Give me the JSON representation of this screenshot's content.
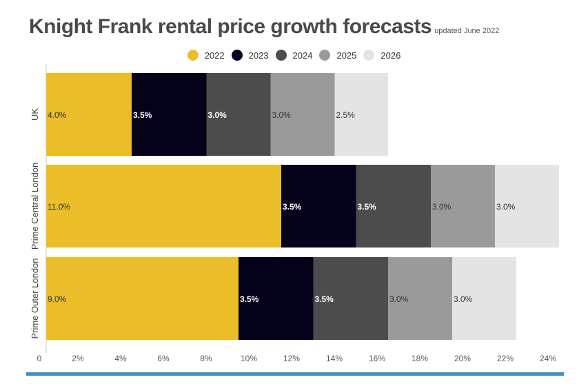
{
  "title": "Knight Frank rental price growth forecasts",
  "subtitle": "updated June 2022",
  "legend": [
    {
      "label": "2022",
      "color": "#ebbd28"
    },
    {
      "label": "2023",
      "color": "#05031c"
    },
    {
      "label": "2024",
      "color": "#4c4c4c"
    },
    {
      "label": "2025",
      "color": "#9a9a9a"
    },
    {
      "label": "2026",
      "color": "#e4e4e4"
    }
  ],
  "chart_data": {
    "type": "bar",
    "orientation": "horizontal",
    "stacked": true,
    "title": "Knight Frank rental price growth forecasts",
    "subtitle": "updated June 2022",
    "categories": [
      "UK",
      "Prime Central London",
      "Prime Outer London"
    ],
    "series": [
      {
        "name": "2022",
        "color": "#ebbd28",
        "label_color": "#333333",
        "values": [
          4.0,
          11.0,
          9.0
        ]
      },
      {
        "name": "2023",
        "color": "#05031c",
        "label_color": "#ffffff",
        "values": [
          3.5,
          3.5,
          3.5
        ]
      },
      {
        "name": "2024",
        "color": "#4c4c4c",
        "label_color": "#ffffff",
        "values": [
          3.0,
          3.5,
          3.5
        ]
      },
      {
        "name": "2025",
        "color": "#9a9a9a",
        "label_color": "#333333",
        "values": [
          3.0,
          3.0,
          3.0
        ]
      },
      {
        "name": "2026",
        "color": "#e4e4e4",
        "label_color": "#333333",
        "values": [
          2.5,
          3.0,
          3.0
        ]
      }
    ],
    "data_labels": [
      [
        "4.0%",
        "3.5%",
        "3.0%",
        "3.0%",
        "2.5%"
      ],
      [
        "11.0%",
        "3.5%",
        "3.5%",
        "3.0%",
        "3.0%"
      ],
      [
        "9.0%",
        "3.5%",
        "3.5%",
        "3.0%",
        "3.0%"
      ]
    ],
    "xlim": [
      0,
      24
    ],
    "xticks": [
      0,
      2,
      4,
      6,
      8,
      10,
      12,
      14,
      16,
      18,
      20,
      22,
      24
    ],
    "xtick_labels": [
      "0",
      "2%",
      "4%",
      "6%",
      "8%",
      "10%",
      "12%",
      "14%",
      "16%",
      "18%",
      "20%",
      "22%",
      "24%"
    ],
    "xlabel": "",
    "ylabel": "",
    "grid": false,
    "legend_position": "top-center"
  }
}
